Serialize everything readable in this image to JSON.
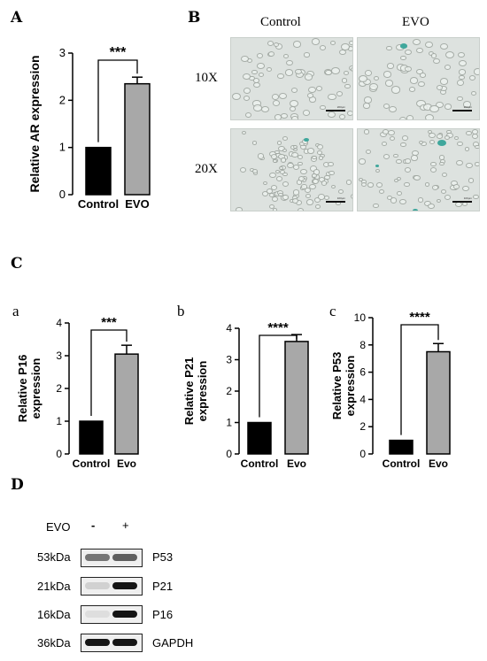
{
  "panels": {
    "A": "A",
    "B": "B",
    "C": "C",
    "D": "D"
  },
  "sublabels": {
    "a": "a",
    "b": "b",
    "c": "c"
  },
  "colors": {
    "control_bar": "#000000",
    "treated_bar": "#a8a8a8",
    "stain": "#3fa79c"
  },
  "chart_data": [
    {
      "id": "A",
      "type": "bar",
      "title": "",
      "xlabel": "",
      "ylabel": [
        "Relative AR expression"
      ],
      "categories": [
        "Control",
        "EVO"
      ],
      "values": [
        1.0,
        2.35
      ],
      "error": [
        0,
        0.14
      ],
      "ylim": [
        0,
        3
      ],
      "yticks": [
        "0",
        "1",
        "2",
        "3"
      ],
      "significance": "***"
    },
    {
      "id": "C-a",
      "type": "bar",
      "title": "",
      "xlabel": "",
      "ylabel": [
        "Relative P16",
        "expression"
      ],
      "categories": [
        "Control",
        "Evo"
      ],
      "values": [
        1.0,
        3.05
      ],
      "error": [
        0,
        0.27
      ],
      "ylim": [
        0,
        4
      ],
      "yticks": [
        "0",
        "1",
        "2",
        "3",
        "4"
      ],
      "significance": "***"
    },
    {
      "id": "C-b",
      "type": "bar",
      "title": "",
      "xlabel": "",
      "ylabel": [
        "Relative P21",
        "expression"
      ],
      "categories": [
        "Control",
        "Evo"
      ],
      "values": [
        1.0,
        3.58
      ],
      "error": [
        0,
        0.22
      ],
      "ylim": [
        0,
        4
      ],
      "yticks": [
        "0",
        "1",
        "2",
        "3",
        "4"
      ],
      "significance": "****"
    },
    {
      "id": "C-c",
      "type": "bar",
      "title": "",
      "xlabel": "",
      "ylabel": [
        "Relative P53",
        "expression"
      ],
      "categories": [
        "Control",
        "Evo"
      ],
      "values": [
        1.0,
        7.5
      ],
      "error": [
        0,
        0.6
      ],
      "ylim": [
        0,
        10
      ],
      "yticks": [
        "0",
        "2",
        "4",
        "6",
        "8",
        "10"
      ],
      "significance": "****"
    }
  ],
  "microscopy": {
    "columns": [
      "Control",
      "EVO"
    ],
    "rows": [
      "10X",
      "20X"
    ],
    "scale_labels": [
      "200μm",
      "200μm",
      "100μm",
      "100μm"
    ]
  },
  "western_blot": {
    "treatment_label": "EVO",
    "lanes": [
      "-",
      "+"
    ],
    "rows": [
      {
        "size": "53kDa",
        "protein": "P53",
        "intensity": [
          0.55,
          0.65
        ]
      },
      {
        "size": "21kDa",
        "protein": "P21",
        "intensity": [
          0.12,
          1.0
        ]
      },
      {
        "size": "16kDa",
        "protein": "P16",
        "intensity": [
          0.06,
          1.0
        ]
      },
      {
        "size": "36kDa",
        "protein": "GAPDH",
        "intensity": [
          1.0,
          1.0
        ]
      }
    ]
  }
}
